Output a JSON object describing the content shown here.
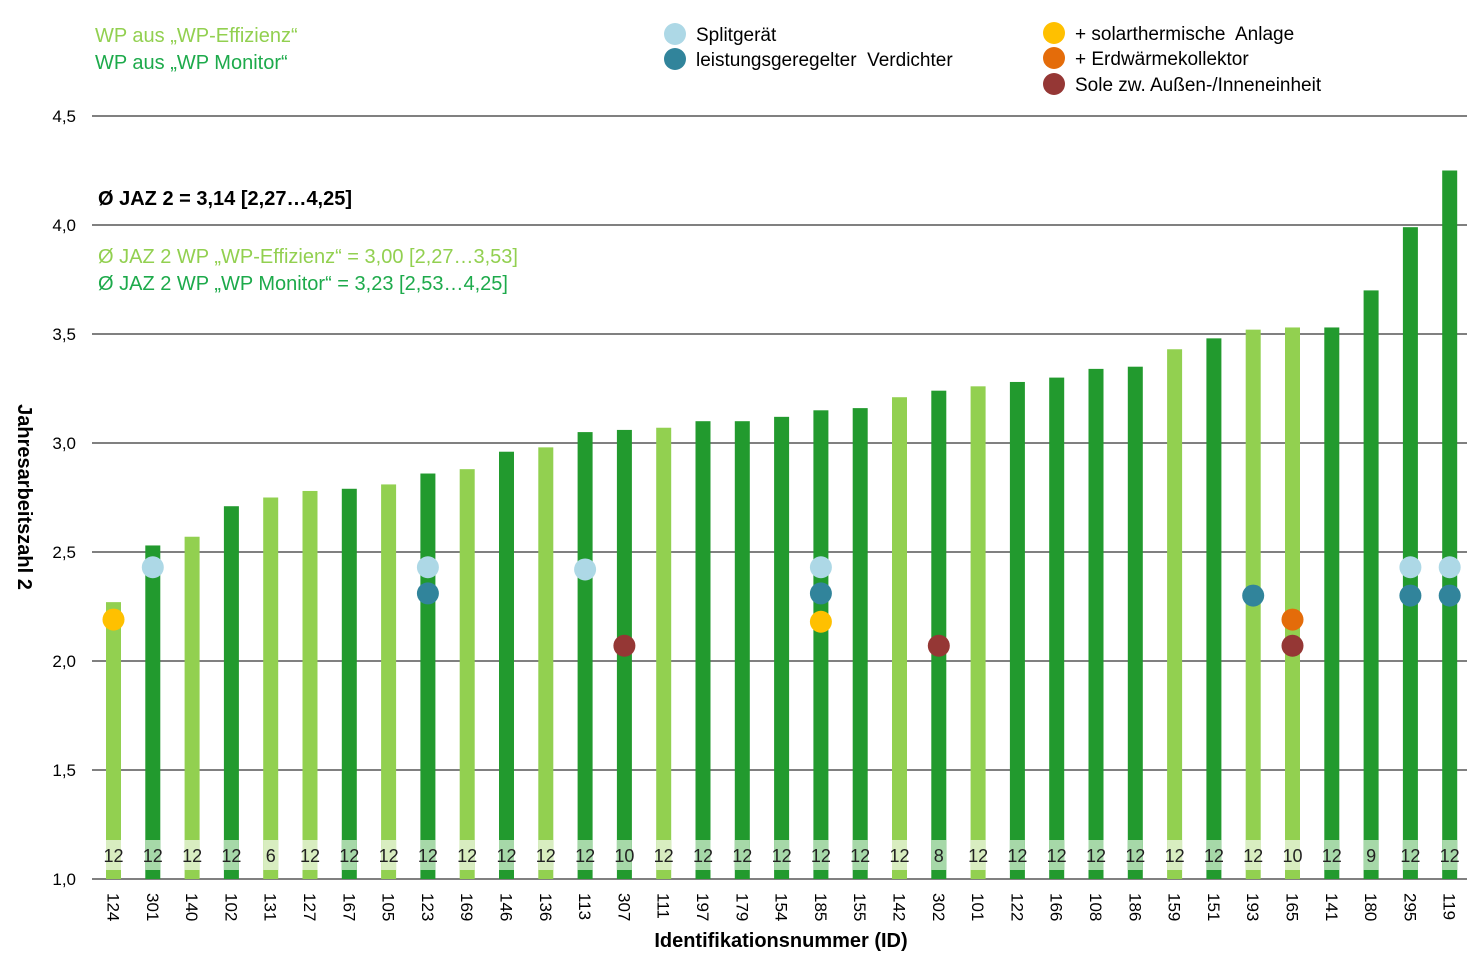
{
  "colors": {
    "wp_effizienz": "#92D050",
    "wp_monitor": "#229A2E",
    "average_text": "#000000",
    "average_effizienz_text": "#92D050",
    "average_monitor_text": "#1DAA4B",
    "splitgeraet": "#ADD8E6",
    "leistungsgeregelt": "#31849B",
    "solarthermisch": "#FFC000",
    "erdwaerme": "#E46C0A",
    "sole": "#953735",
    "label_box_effizienz": "#D8EDC0",
    "label_box_monitor": "#A6D8A8"
  },
  "legend_series": {
    "wp_effizienz": "WP aus „WP-Effizienz“",
    "wp_monitor": "WP aus „WP Monitor“"
  },
  "legend_markers": [
    {
      "key": "splitgeraet",
      "label": "Splitgerät"
    },
    {
      "key": "leistungsgeregelt",
      "label": "leistungsgeregelter  Verdichter"
    },
    {
      "key": "solarthermisch",
      "label": "+ solarthermische  Anlage"
    },
    {
      "key": "erdwaerme",
      "label": "+ Erdwärmekollektor"
    },
    {
      "key": "sole",
      "label": "Sole zw. Außen-/Inneneinheit"
    }
  ],
  "annotations": {
    "avg_all": "Ø JAZ 2 = 3,14 [2,27…4,25]",
    "avg_effizienz": "Ø JAZ 2 WP „WP-Effizienz“ = 3,00 [2,27…3,53]",
    "avg_monitor": "Ø JAZ 2 WP „WP Monitor“ = 3,23 [2,53…4,25]"
  },
  "chart_data": {
    "type": "bar",
    "xlabel": "Identifikationsnummer (ID)",
    "ylabel": "Jahresarbeitszahl 2",
    "ylim": [
      1.0,
      4.5
    ],
    "yticks": [
      "1,0",
      "1,5",
      "2,0",
      "2,5",
      "3,0",
      "3,5",
      "4,0",
      "4,5"
    ],
    "ytick_values": [
      1.0,
      1.5,
      2.0,
      2.5,
      3.0,
      3.5,
      4.0,
      4.5
    ],
    "grid": true,
    "categories": [
      "124",
      "301",
      "140",
      "102",
      "131",
      "127",
      "167",
      "105",
      "123",
      "169",
      "146",
      "136",
      "113",
      "307",
      "111",
      "197",
      "179",
      "154",
      "185",
      "155",
      "142",
      "302",
      "101",
      "122",
      "166",
      "108",
      "186",
      "159",
      "151",
      "193",
      "165",
      "141",
      "180",
      "295",
      "119"
    ],
    "values": [
      2.27,
      2.53,
      2.57,
      2.71,
      2.75,
      2.78,
      2.79,
      2.81,
      2.86,
      2.88,
      2.96,
      2.98,
      3.05,
      3.06,
      3.07,
      3.1,
      3.1,
      3.12,
      3.15,
      3.16,
      3.21,
      3.24,
      3.26,
      3.28,
      3.3,
      3.34,
      3.35,
      3.43,
      3.48,
      3.52,
      3.53,
      3.53,
      3.7,
      3.99,
      4.25
    ],
    "source": [
      "E",
      "M",
      "E",
      "M",
      "E",
      "E",
      "M",
      "E",
      "M",
      "E",
      "M",
      "E",
      "M",
      "M",
      "E",
      "M",
      "M",
      "M",
      "M",
      "M",
      "E",
      "M",
      "E",
      "M",
      "M",
      "M",
      "M",
      "E",
      "M",
      "E",
      "E",
      "M",
      "M",
      "M",
      "M"
    ],
    "months": [
      "12",
      "12",
      "12",
      "12",
      "6",
      "12",
      "12",
      "12",
      "12",
      "12",
      "12",
      "12",
      "12",
      "10",
      "12",
      "12",
      "12",
      "12",
      "12",
      "12",
      "12",
      "8",
      "12",
      "12",
      "12",
      "12",
      "12",
      "12",
      "12",
      "12",
      "10",
      "12",
      "9",
      "12",
      "12"
    ],
    "markers": [
      {
        "id": "124",
        "type": "solarthermisch",
        "y": 2.19
      },
      {
        "id": "301",
        "type": "splitgeraet",
        "y": 2.43
      },
      {
        "id": "123",
        "type": "splitgeraet",
        "y": 2.43
      },
      {
        "id": "123",
        "type": "leistungsgeregelt",
        "y": 2.31
      },
      {
        "id": "113",
        "type": "splitgeraet",
        "y": 2.42
      },
      {
        "id": "307",
        "type": "sole",
        "y": 2.07
      },
      {
        "id": "185",
        "type": "splitgeraet",
        "y": 2.43
      },
      {
        "id": "185",
        "type": "leistungsgeregelt",
        "y": 2.31
      },
      {
        "id": "185",
        "type": "solarthermisch",
        "y": 2.18
      },
      {
        "id": "302",
        "type": "sole",
        "y": 2.07
      },
      {
        "id": "193",
        "type": "leistungsgeregelt",
        "y": 2.3
      },
      {
        "id": "165",
        "type": "erdwaerme",
        "y": 2.19
      },
      {
        "id": "165",
        "type": "sole",
        "y": 2.07
      },
      {
        "id": "295",
        "type": "splitgeraet",
        "y": 2.43
      },
      {
        "id": "295",
        "type": "leistungsgeregelt",
        "y": 2.3
      },
      {
        "id": "119",
        "type": "splitgeraet",
        "y": 2.43
      },
      {
        "id": "119",
        "type": "leistungsgeregelt",
        "y": 2.3
      }
    ]
  }
}
